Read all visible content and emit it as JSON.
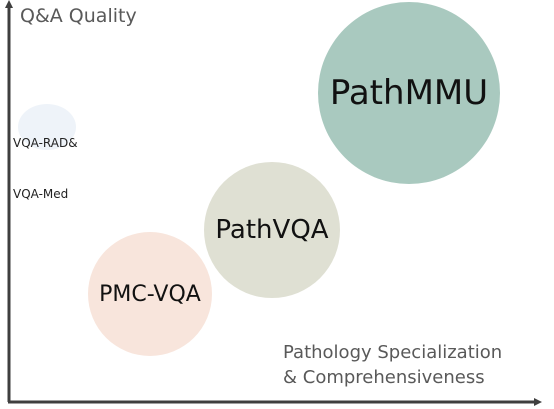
{
  "axes": {
    "y_label": "Q&A Quality",
    "x_label_line1": "Pathology Specialization",
    "x_label_line2": "& Comprehensiveness"
  },
  "bubbles": [
    {
      "label": "PathMMU",
      "color": "#a9c9bf"
    },
    {
      "label": "PathVQA",
      "color": "#dfe0d3"
    },
    {
      "label": "PMC-VQA",
      "color": "#f8e5dc"
    },
    {
      "label_line1": "VQA-RAD&",
      "label_line2": "VQA-Med",
      "color": "#eef3f9"
    }
  ],
  "colors": {
    "axis": "#3f3f3f",
    "axis_label": "#595959"
  }
}
